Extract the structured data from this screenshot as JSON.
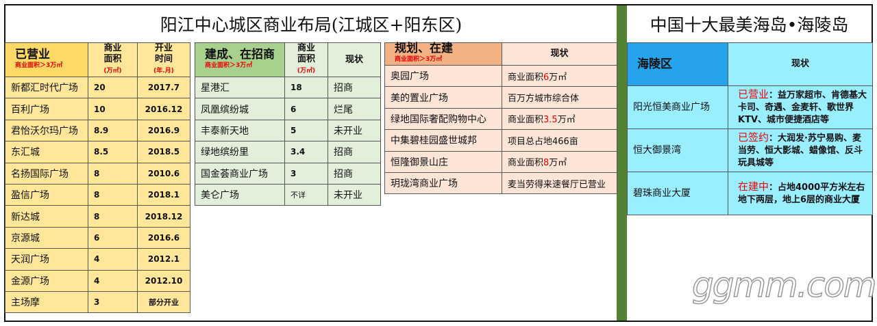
{
  "titles": {
    "left": "阳江中心城区商业布局(江城区+阳东区)",
    "right": "中国十大最美海岛•海陵岛"
  },
  "colors": {
    "operating": "#FFD966",
    "recruiting": "#A9D18E",
    "planned": "#F4B183",
    "hailing": "#25A3EC",
    "divider": "#548235"
  },
  "operating": {
    "title": "已营业",
    "subtitle": "商业面积＞3万㎡",
    "col_area": "商业面积",
    "col_area_unit": "(万㎡)",
    "col_time": "开业时间",
    "col_time_unit": "(年.月)",
    "rows": [
      [
        "新都汇时代广场",
        "20",
        "2017.7"
      ],
      [
        "百利广场",
        "10",
        "2016.12"
      ],
      [
        "君怡沃尔玛广场",
        "8.9",
        "2016.9"
      ],
      [
        "东汇城",
        "8.5",
        "2018.5"
      ],
      [
        "名扬国际广场",
        "8",
        "2010.6"
      ],
      [
        "盈信广场",
        "8",
        "2018.1"
      ],
      [
        "新达城",
        "8",
        "2018.12"
      ],
      [
        "京源城",
        "6",
        "2016.6"
      ],
      [
        "天润广场",
        "4",
        "2012.1"
      ],
      [
        "金源广场",
        "4",
        "2012.10"
      ],
      [
        "主场摩",
        "3",
        "部分开业"
      ]
    ]
  },
  "recruiting": {
    "title": "建成、在招商",
    "subtitle": "商业面积＞3万㎡",
    "col_area": "商业面积",
    "col_area_unit": "(万㎡)",
    "col_status": "现状",
    "rows": [
      [
        "星港汇",
        "18",
        "招商"
      ],
      [
        "凤凰缤纷城",
        "6",
        "烂尾"
      ],
      [
        "丰泰新天地",
        "5",
        "未开业"
      ],
      [
        "绿地缤纷里",
        "3.4",
        "招商"
      ],
      [
        "国金荟商业广场",
        "3",
        "招商"
      ],
      [
        "美仑广场",
        "不详",
        "未开业"
      ]
    ]
  },
  "planned": {
    "title": "规划、在建",
    "subtitle": "商业面积＞3万㎡",
    "col_status": "现状",
    "rows": [
      [
        "奥园广场",
        "商业面积",
        "6",
        "万㎡"
      ],
      [
        "美的置业广场",
        "百万方城市综合体",
        "",
        ""
      ],
      [
        "绿地国际奢配购物中心",
        "商业面积",
        "3.5",
        "万㎡"
      ],
      [
        "中集碧桂园盛世城邦",
        "项目总占地466亩",
        "",
        ""
      ],
      [
        "恒隆御景山庄",
        "商业面积",
        "8",
        "万㎡"
      ],
      [
        "玥珑湾商业广场",
        "麦当劳得来速餐厅已营业",
        "",
        ""
      ]
    ]
  },
  "hailing": {
    "title": "海陵区",
    "col_status": "现状",
    "rows": [
      [
        "阳光恒美商业广场",
        "已营业",
        "：益万家超市、肯德基大卡司、奇遇、金麦轩、歌世界KTV、城市便捷酒店等"
      ],
      [
        "恒大御景湾",
        "已签约",
        "：大润发·苏宁易购、麦当劳、恒大影城、蜡像馆、反斗玩具城等"
      ],
      [
        "碧珠商业大厦",
        "在建中",
        "：占地4000平方米左右地下两层，地上6层的商业大厦"
      ]
    ]
  },
  "watermark": "ggmm.com"
}
